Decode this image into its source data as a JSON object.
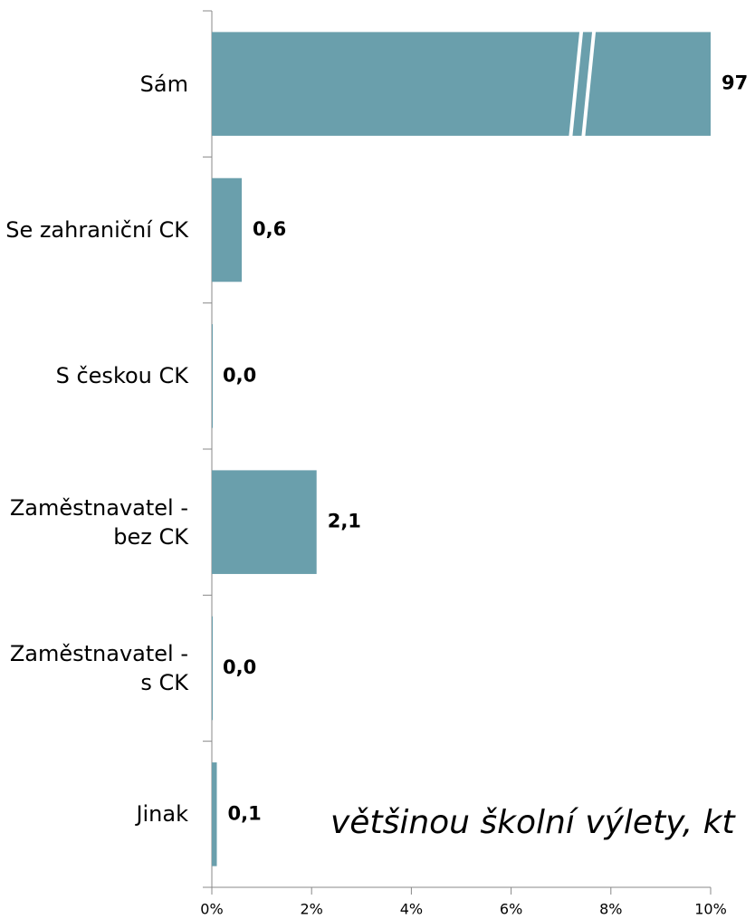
{
  "chart_data": {
    "type": "bar",
    "orientation": "horizontal",
    "categories": [
      "Sám",
      "Se zahraniční CK",
      "S českou CK",
      "Zaměstnavatel - bez CK",
      "Zaměstnavatel - s CK",
      "Jinak"
    ],
    "values": [
      97,
      0.6,
      0.0,
      2.1,
      0.0,
      0.1
    ],
    "value_labels": [
      "97",
      "0,6",
      "0,0",
      "2,1",
      "0,0",
      "0,1"
    ],
    "color": "#6a9fac",
    "xlim": [
      0,
      10
    ],
    "xticks": [
      {
        "value": 0,
        "label": "0%"
      },
      {
        "value": 2,
        "label": "2%"
      },
      {
        "value": 4,
        "label": "4%"
      },
      {
        "value": 6,
        "label": "6%"
      },
      {
        "value": 8,
        "label": "8%"
      },
      {
        "value": 10,
        "label": "10%"
      }
    ],
    "annotation": "většinou školní výlety, kt",
    "axis_break": true
  }
}
